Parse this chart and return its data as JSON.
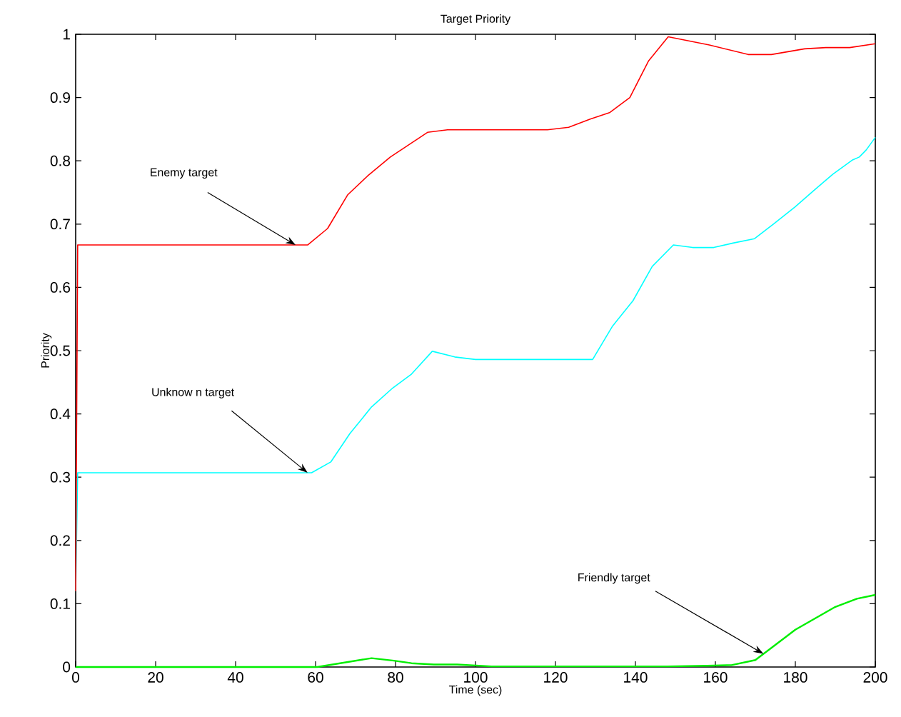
{
  "chart_data": {
    "type": "line",
    "title": "Target Priority",
    "xlabel": "Time (sec)",
    "ylabel": "Priority",
    "xlim": [
      0,
      200
    ],
    "ylim": [
      0,
      1
    ],
    "xticks": [
      0,
      20,
      40,
      60,
      80,
      100,
      120,
      140,
      160,
      180,
      200
    ],
    "yticks": [
      0,
      0.1,
      0.2,
      0.3,
      0.4,
      0.5,
      0.6,
      0.7,
      0.8,
      0.9,
      1
    ],
    "grid": false,
    "series": [
      {
        "color": "#ff0000",
        "x": [
          0,
          0.5,
          58,
          63,
          68,
          73,
          78.7,
          88,
          93,
          118,
          123.3,
          128.7,
          133.5,
          138.6,
          143.3,
          148.2,
          158.5,
          168.2,
          174,
          182.3,
          187.6,
          193.6,
          200
        ],
        "values": [
          0.12,
          0.667,
          0.667,
          0.693,
          0.746,
          0.776,
          0.806,
          0.845,
          0.849,
          0.849,
          0.853,
          0.866,
          0.876,
          0.9,
          0.958,
          0.996,
          0.983,
          0.968,
          0.968,
          0.977,
          0.979,
          0.979,
          0.985
        ]
      },
      {
        "color": "#00ffff",
        "x": [
          0,
          0.5,
          59,
          63.8,
          68.6,
          74,
          79.3,
          84,
          89.2,
          94.8,
          100,
          129.3,
          134.3,
          139.4,
          144.2,
          149.5,
          154.3,
          159.6,
          164.4,
          169.8,
          174.5,
          179.9,
          184.6,
          189.4,
          194.2,
          196,
          197.7,
          200
        ],
        "values": [
          0.12,
          0.307,
          0.307,
          0.324,
          0.369,
          0.411,
          0.441,
          0.463,
          0.499,
          0.49,
          0.486,
          0.486,
          0.539,
          0.579,
          0.633,
          0.667,
          0.663,
          0.663,
          0.67,
          0.677,
          0.7,
          0.727,
          0.753,
          0.779,
          0.801,
          0.806,
          0.817,
          0.837
        ]
      },
      {
        "color": "#00ee00",
        "x": [
          0,
          60.4,
          74,
          79.6,
          84,
          89.6,
          95.4,
          104,
          148,
          158,
          164,
          170,
          180,
          190,
          195.4,
          200
        ],
        "values": [
          0,
          0,
          0.014,
          0.01,
          0.006,
          0.004,
          0.004,
          0.001,
          0.001,
          0.002,
          0.003,
          0.011,
          0.059,
          0.095,
          0.108,
          0.114
        ]
      }
    ],
    "annotations": [
      {
        "text": "Enemy target",
        "x": 55,
        "y": 0.667
      },
      {
        "text": "Unknow n target",
        "x": 58,
        "y": 0.307
      },
      {
        "text": "Friendly target",
        "x": 172,
        "y": 0.021
      }
    ]
  }
}
